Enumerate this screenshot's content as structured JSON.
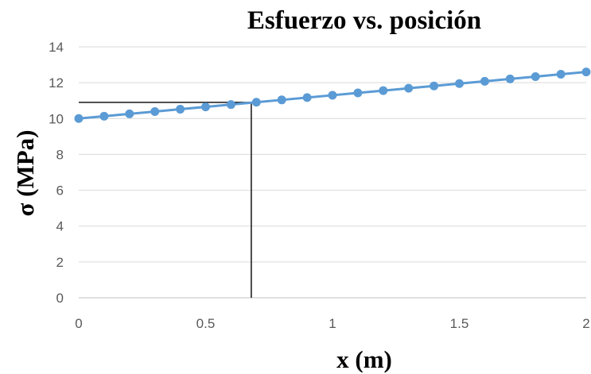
{
  "chart_data": {
    "type": "line",
    "title": "Esfuerzo vs. posición",
    "xlabel": "x (m)",
    "ylabel": "σ (MPa)",
    "xlim": [
      0,
      2
    ],
    "ylim": [
      0,
      14
    ],
    "x_ticks": [
      "0",
      "0.5",
      "1",
      "1.5",
      "2"
    ],
    "y_ticks": [
      "0",
      "2",
      "4",
      "6",
      "8",
      "10",
      "12",
      "14"
    ],
    "grid": "horizontal",
    "legend": "none",
    "series": [
      {
        "color": "#5B9BD5",
        "marker": "circle",
        "x": [
          0,
          0.1,
          0.2,
          0.3,
          0.4,
          0.5,
          0.6,
          0.7,
          0.8,
          0.9,
          1.0,
          1.1,
          1.2,
          1.3,
          1.4,
          1.5,
          1.6,
          1.7,
          1.8,
          1.9,
          2.0
        ],
        "y": [
          10.0,
          10.13,
          10.26,
          10.39,
          10.52,
          10.65,
          10.78,
          10.91,
          11.04,
          11.17,
          11.3,
          11.43,
          11.56,
          11.69,
          11.82,
          11.95,
          12.08,
          12.21,
          12.34,
          12.47,
          12.6
        ]
      }
    ],
    "annotation_lines": {
      "color": "#000000",
      "x": 0.68,
      "y": 10.9
    }
  }
}
